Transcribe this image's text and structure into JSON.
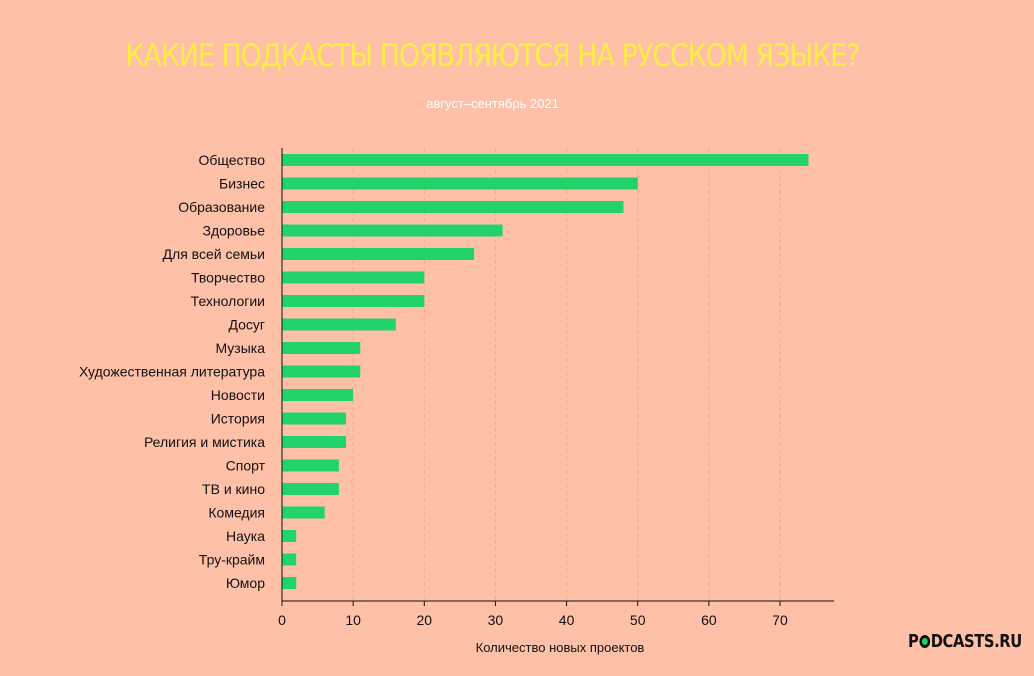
{
  "chart_data": {
    "type": "bar",
    "orientation": "horizontal",
    "title": "КАКИЕ ПОДКАСТЫ ПОЯВЛЯЮТСЯ НА РУССКОМ ЯЗЫКЕ?",
    "subtitle": "август–сентябрь 2021",
    "xlabel": "Количество новых проектов",
    "ylabel": "",
    "xlim": [
      0,
      77
    ],
    "xticks": [
      0,
      10,
      20,
      30,
      40,
      50,
      60,
      70
    ],
    "grid": "vertical-dashed",
    "bar_color": "#22d36b",
    "categories": [
      "Общество",
      "Бизнес",
      "Образование",
      "Здоровье",
      "Для всей семьи",
      "Творчество",
      "Технологии",
      "Досуг",
      "Музыка",
      "Художественная литература",
      "Новости",
      "История",
      "Религия и мистика",
      "Спорт",
      "ТВ и кино",
      "Комедия",
      "Наука",
      "Тру-крайм",
      "Юмор"
    ],
    "values": [
      74,
      50,
      48,
      31,
      27,
      20,
      20,
      16,
      11,
      11,
      10,
      9,
      9,
      8,
      8,
      6,
      2,
      2,
      2
    ]
  },
  "logo": {
    "before": "P",
    "after": "DCASTS.RU",
    "accent": "#22d36b"
  }
}
